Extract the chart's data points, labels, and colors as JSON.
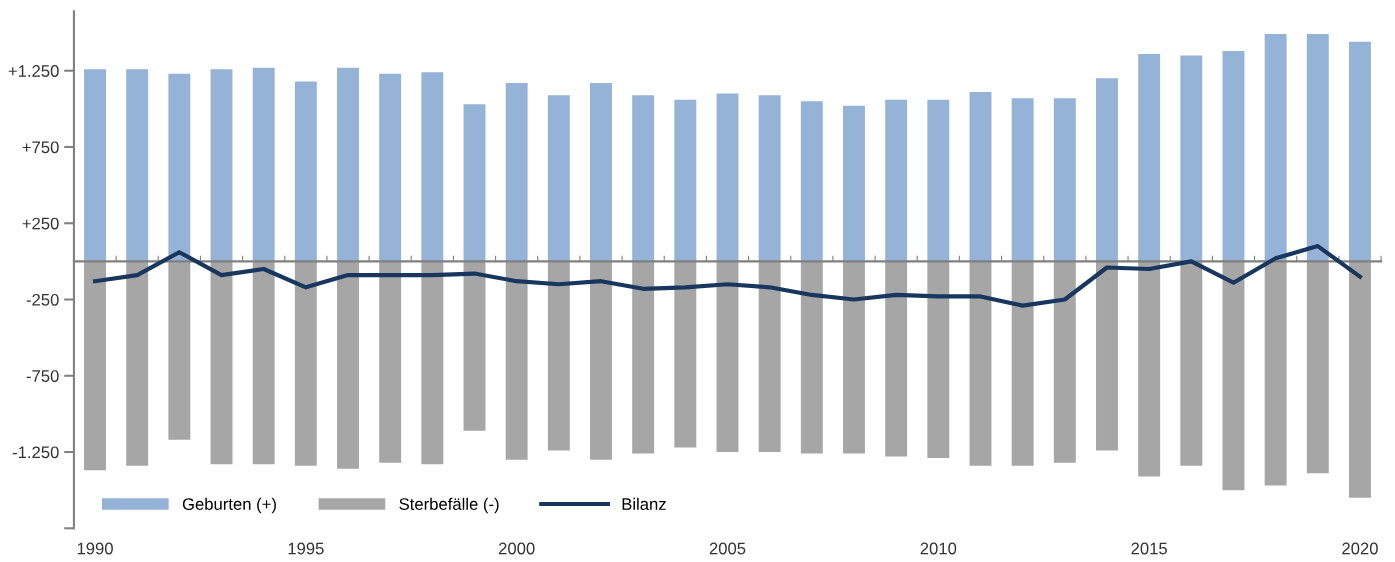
{
  "chart_data": {
    "type": "bar",
    "categories": [
      "1990",
      null,
      null,
      null,
      null,
      "1995",
      null,
      null,
      null,
      null,
      "2000",
      null,
      null,
      null,
      null,
      "2005",
      null,
      null,
      null,
      null,
      "2010",
      null,
      null,
      null,
      null,
      "2015",
      null,
      null,
      null,
      null,
      "2020"
    ],
    "series": [
      {
        "name": "Geburten (+)",
        "color": "#95b3d7",
        "values": [
          1260,
          1260,
          1230,
          1260,
          1270,
          1180,
          1270,
          1230,
          1240,
          1030,
          1170,
          1090,
          1170,
          1090,
          1060,
          1100,
          1090,
          1050,
          1020,
          1060,
          1060,
          1110,
          1070,
          1070,
          1200,
          1360,
          1350,
          1380,
          1490,
          1490,
          1440
        ]
      },
      {
        "name": "Sterbefälle (-)",
        "color": "#a6a6a6",
        "values": [
          -1370,
          -1340,
          -1170,
          -1330,
          -1330,
          -1340,
          -1360,
          -1320,
          -1330,
          -1110,
          -1300,
          -1240,
          -1300,
          -1260,
          -1220,
          -1250,
          -1250,
          -1260,
          -1260,
          -1280,
          -1290,
          -1340,
          -1340,
          -1320,
          -1240,
          -1410,
          -1340,
          -1500,
          -1470,
          -1390,
          -1550
        ]
      },
      {
        "name": "Bilanz",
        "type": "line",
        "color": "#17375e",
        "values": [
          -130,
          -90,
          60,
          -90,
          -50,
          -170,
          -90,
          -90,
          -90,
          -80,
          -130,
          -150,
          -130,
          -180,
          -170,
          -150,
          -170,
          -220,
          -250,
          -220,
          -230,
          -230,
          -290,
          -250,
          -40,
          -50,
          0,
          -140,
          20,
          100,
          -100
        ]
      }
    ],
    "ylim": [
      -1750,
      1640
    ],
    "stacked": true,
    "yticks": [
      {
        "value": -1750,
        "label": null
      },
      {
        "value": -1250,
        "label": "-1.250"
      },
      {
        "value": -750,
        "label": "-750"
      },
      {
        "value": -250,
        "label": "-250"
      },
      {
        "value": 250,
        "label": "+250"
      },
      {
        "value": 750,
        "label": "+750"
      },
      {
        "value": 1250,
        "label": "+1.250"
      }
    ],
    "legend": "bottom left",
    "grid": false,
    "marker": "none",
    "line_style": "solid"
  }
}
